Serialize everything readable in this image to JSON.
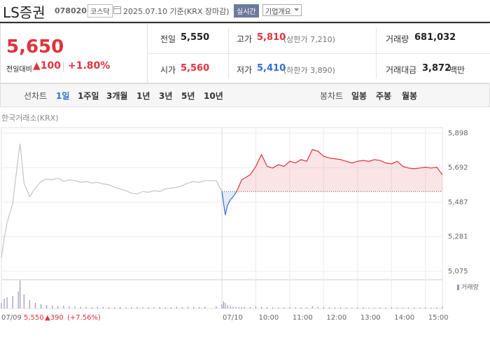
{
  "header": {
    "name": "LS증권",
    "code": "078020",
    "market": "코스닥",
    "date": "2025.07.10 기준(KRX 장마감)",
    "realtime": "실시간",
    "company": "기업개요"
  },
  "quote": {
    "price": "5,650",
    "change_label": "전일대비",
    "change": "▲100",
    "rate": "+1.80%",
    "stats": [
      [
        {
          "label": "전일",
          "value": "5,550"
        },
        {
          "label": "고가",
          "value": "5,810",
          "note": "(상한가 7,210)"
        },
        {
          "label": "거래량",
          "value": "681,032"
        }
      ],
      [
        {
          "label": "시가",
          "value": "5,560"
        },
        {
          "label": "저가",
          "value": "5,410",
          "note": "(하한가 3,890)"
        },
        {
          "label": "거래대금",
          "value": "3,872",
          "unit": "백만"
        }
      ]
    ]
  },
  "tabs": {
    "line_label": "선차트",
    "line": [
      "1일",
      "1주일",
      "3개월",
      "1년",
      "3년",
      "5년",
      "10년"
    ],
    "candle_label": "봉차트",
    "candle": [
      "일봉",
      "주봉",
      "월봉"
    ]
  },
  "chart_data": {
    "type": "line",
    "title": "한국거래소(KRX)",
    "series": [
      {
        "name": "07/09",
        "color": "#c4c4c4",
        "x": [
          "09:00",
          "09:05",
          "09:10",
          "09:20",
          "09:30",
          "09:33",
          "09:40",
          "09:50",
          "10:00",
          "10:10",
          "10:20",
          "10:30",
          "10:40",
          "10:50",
          "11:00",
          "11:10",
          "11:20",
          "11:30",
          "11:40",
          "11:50",
          "12:00",
          "12:10",
          "12:20",
          "12:30",
          "12:40",
          "12:50",
          "13:00",
          "13:10",
          "13:20",
          "13:30",
          "13:40",
          "13:50",
          "14:00",
          "14:10",
          "14:20",
          "14:30",
          "14:40",
          "14:50",
          "15:00",
          "15:20",
          "15:30"
        ],
        "values": [
          5154,
          5271,
          5363,
          5480,
          5760,
          5835,
          5600,
          5520,
          5570,
          5610,
          5625,
          5620,
          5630,
          5610,
          5620,
          5615,
          5605,
          5610,
          5600,
          5605,
          5595,
          5590,
          5575,
          5565,
          5555,
          5540,
          5535,
          5550,
          5545,
          5555,
          5550,
          5565,
          5570,
          5575,
          5585,
          5600,
          5610,
          5605,
          5615,
          5615,
          5550
        ],
        "volume": [
          20,
          35,
          40,
          45,
          60,
          100,
          50,
          30,
          20,
          15,
          12,
          10,
          8,
          10,
          8,
          7,
          6,
          6,
          5,
          6,
          5,
          5,
          4,
          5,
          4,
          5,
          5,
          4,
          5,
          4,
          5,
          4,
          5,
          6,
          5,
          6,
          6,
          5,
          6,
          8,
          10
        ]
      },
      {
        "name": "07/10",
        "color": "#e0323c",
        "color_below": "#2f6fd6",
        "x": [
          "09:00",
          "09:03",
          "09:06",
          "09:10",
          "09:15",
          "09:20",
          "09:25",
          "09:30",
          "09:35",
          "09:40",
          "09:50",
          "10:00",
          "10:10",
          "10:20",
          "10:30",
          "10:40",
          "10:50",
          "11:00",
          "11:10",
          "11:20",
          "11:30",
          "11:40",
          "11:50",
          "12:00",
          "12:10",
          "12:20",
          "12:30",
          "12:40",
          "12:50",
          "13:00",
          "13:10",
          "13:20",
          "13:30",
          "13:40",
          "13:50",
          "14:00",
          "14:10",
          "14:20",
          "14:30",
          "14:40",
          "14:50",
          "15:00",
          "15:10",
          "15:20",
          "15:30"
        ],
        "values": [
          5550,
          5480,
          5410,
          5470,
          5500,
          5520,
          5545,
          5580,
          5620,
          5630,
          5650,
          5700,
          5770,
          5700,
          5690,
          5710,
          5700,
          5730,
          5720,
          5740,
          5730,
          5800,
          5790,
          5760,
          5750,
          5745,
          5740,
          5730,
          5720,
          5730,
          5735,
          5730,
          5740,
          5735,
          5720,
          5715,
          5730,
          5700,
          5690,
          5685,
          5690,
          5695,
          5690,
          5695,
          5650
        ],
        "volume": [
          15,
          25,
          20,
          12,
          8,
          6,
          6,
          5,
          5,
          6,
          5,
          8,
          6,
          5,
          4,
          4,
          4,
          5,
          4,
          4,
          4,
          8,
          6,
          5,
          4,
          4,
          4,
          4,
          3,
          4,
          4,
          3,
          3,
          4,
          3,
          4,
          3,
          3,
          3,
          3,
          3,
          4,
          3,
          4,
          6
        ]
      }
    ],
    "reference": {
      "value": 5550,
      "label": "5,550"
    },
    "ylim": [
      5033,
      5931
    ],
    "yticks": [
      {
        "value": 5075,
        "label": "5,075"
      },
      {
        "value": 5281,
        "label": "5,281"
      },
      {
        "value": 5487,
        "label": "5,487"
      },
      {
        "value": 5692,
        "label": "5,692"
      },
      {
        "value": 5898,
        "label": "5,898"
      }
    ],
    "xticks": [
      "10:00",
      "11:00",
      "12:00",
      "13:00",
      "14:00",
      "15:00"
    ],
    "grid": true,
    "volume_name": "거래량",
    "volume_color": "#9a96b8",
    "volume_ylim": [
      0,
      100
    ],
    "footer": {
      "change": "▲390",
      "rate": "(+7.56%)"
    }
  }
}
